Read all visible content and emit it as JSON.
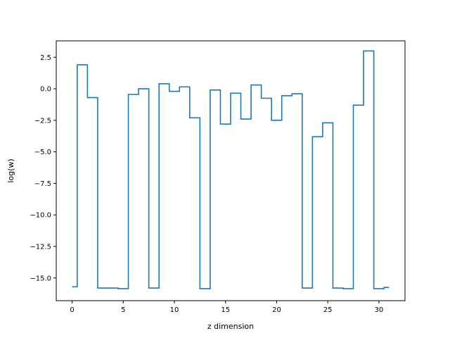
{
  "chart_data": {
    "type": "line",
    "drawstyle": "steps-mid",
    "title": "",
    "xlabel": "z dimension",
    "ylabel": "log(w)",
    "xlim": [
      -1.55,
      32.55
    ],
    "ylim": [
      -16.8,
      3.8
    ],
    "grid": false,
    "legend": "none",
    "x_ticks": [
      0,
      5,
      10,
      15,
      20,
      25,
      30
    ],
    "x_tick_labels": [
      "0",
      "5",
      "10",
      "15",
      "20",
      "25",
      "30"
    ],
    "y_ticks": [
      2.5,
      0.0,
      -2.5,
      -5.0,
      -7.5,
      -10.0,
      -12.5,
      -15.0
    ],
    "y_tick_labels": [
      "2.5",
      "0.0",
      "−2.5",
      "−5.0",
      "−7.5",
      "−10.0",
      "−12.5",
      "−15.0"
    ],
    "series": [
      {
        "color": "#1f77b4",
        "x": [
          0,
          1,
          2,
          3,
          4,
          5,
          6,
          7,
          8,
          9,
          10,
          11,
          12,
          13,
          14,
          15,
          16,
          17,
          18,
          19,
          20,
          21,
          22,
          23,
          24,
          25,
          26,
          27,
          28,
          29,
          30,
          31
        ],
        "y": [
          -15.7,
          1.9,
          -0.7,
          -15.8,
          -15.8,
          -15.85,
          -0.45,
          0.0,
          -15.8,
          0.4,
          -0.2,
          0.15,
          -2.3,
          -15.85,
          -0.1,
          -2.8,
          -0.35,
          -2.4,
          0.3,
          -0.75,
          -2.5,
          -0.55,
          -0.4,
          -15.8,
          -3.8,
          -2.7,
          -15.8,
          -15.85,
          -1.3,
          3.0,
          -15.85,
          -15.75
        ]
      }
    ]
  }
}
